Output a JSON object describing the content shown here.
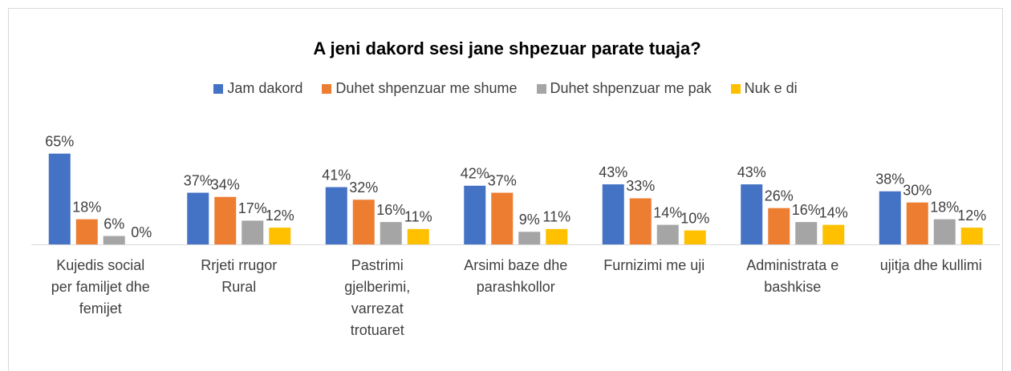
{
  "chart_data": {
    "type": "bar",
    "title": "A jeni dakord sesi jane shpezuar parate tuaja?",
    "categories": [
      "Kujedis social per familjet dhe femijet",
      "Rrjeti rrugor Rural",
      "Pastrimi gjelberimi, varrezat trotuaret",
      "Arsimi baze dhe parashkollor",
      "Furnizimi me uji",
      "Administrata e bashkise",
      "ujitja dhe kullimi"
    ],
    "series": [
      {
        "name": "Jam dakord",
        "color": "#4472c4",
        "values": [
          65,
          37,
          41,
          42,
          43,
          43,
          38
        ],
        "value_labels": [
          "65%",
          "37%",
          "41%",
          "42%",
          "43%",
          "43%",
          "38%"
        ]
      },
      {
        "name": "Duhet shpenzuar me shume",
        "color": "#ed7d31",
        "values": [
          18,
          34,
          32,
          37,
          33,
          26,
          30
        ],
        "value_labels": [
          "18%",
          "34%",
          "32%",
          "37%",
          "33%",
          "26%",
          "30%"
        ]
      },
      {
        "name": "Duhet shpenzuar me pak",
        "color": "#a5a5a5",
        "values": [
          6,
          17,
          16,
          9,
          14,
          16,
          18
        ],
        "value_labels": [
          "6%",
          "17%",
          "16%",
          "9%",
          "14%",
          "16%",
          "18%"
        ]
      },
      {
        "name": "Nuk e di",
        "color": "#ffc000",
        "values": [
          0,
          12,
          11,
          11,
          10,
          14,
          12
        ],
        "value_labels": [
          "0%",
          "12%",
          "11%",
          "11%",
          "10%",
          "14%",
          "12%"
        ]
      }
    ],
    "ylim": [
      0,
      70
    ],
    "legend": "top"
  }
}
